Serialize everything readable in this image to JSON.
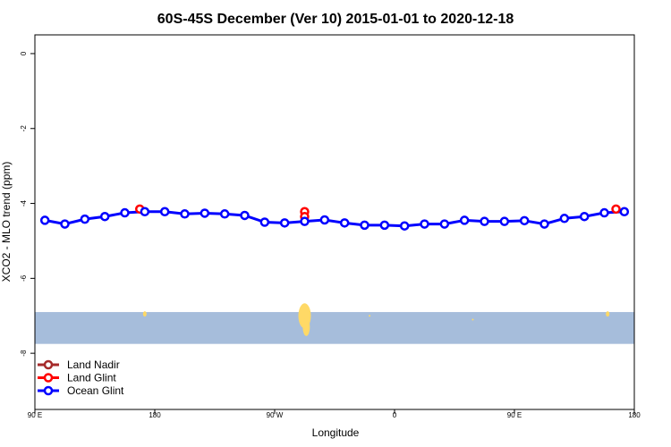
{
  "chart_data": {
    "type": "line",
    "title": "60S-45S December (Ver 10)   2015-01-01 to 2020-12-18",
    "xlabel": "Longitude",
    "ylabel": "XCO2 - MLO trend (ppm)",
    "xlim": [
      90,
      450
    ],
    "ylim": [
      -9.5,
      0.5
    ],
    "x_ticks": [
      {
        "value": 90,
        "label": "90 E"
      },
      {
        "value": 162,
        "label": "180"
      },
      {
        "value": 234,
        "label": "90 W"
      },
      {
        "value": 306,
        "label": "0"
      },
      {
        "value": 378,
        "label": "90 E"
      },
      {
        "value": 450,
        "label": "180"
      }
    ],
    "y_ticks": [
      {
        "value": 0,
        "label": "0"
      },
      {
        "value": -2,
        "label": "-2"
      },
      {
        "value": -4,
        "label": "-4"
      },
      {
        "value": -6,
        "label": "-6"
      },
      {
        "value": -8,
        "label": "-8"
      }
    ],
    "map_band": {
      "y_top": -6.9,
      "y_bottom": -7.75,
      "ocean_color": "#a6bddb",
      "land_color": "#ffd966"
    },
    "legend": {
      "position": "bottom-left"
    },
    "series": [
      {
        "name": "Land Nadir",
        "color": "#a52a2a",
        "x": [],
        "y": []
      },
      {
        "name": "Land Glint",
        "color": "#ff0000",
        "x": [
          153,
          252,
          252,
          439
        ],
        "y": [
          -4.15,
          -4.22,
          -4.35,
          -4.15
        ]
      },
      {
        "name": "Ocean Glint",
        "color": "#0000ff",
        "x": [
          96,
          108,
          120,
          132,
          144,
          156,
          168,
          180,
          192,
          204,
          216,
          228,
          240,
          252,
          264,
          276,
          288,
          300,
          312,
          324,
          336,
          348,
          360,
          372,
          384,
          396,
          408,
          420,
          432,
          444
        ],
        "y": [
          -4.45,
          -4.55,
          -4.42,
          -4.35,
          -4.25,
          -4.22,
          -4.22,
          -4.28,
          -4.26,
          -4.28,
          -4.32,
          -4.5,
          -4.52,
          -4.48,
          -4.44,
          -4.52,
          -4.58,
          -4.58,
          -4.6,
          -4.55,
          -4.55,
          -4.45,
          -4.48,
          -4.48,
          -4.46,
          -4.55,
          -4.4,
          -4.35,
          -4.25,
          -4.22
        ]
      }
    ]
  }
}
